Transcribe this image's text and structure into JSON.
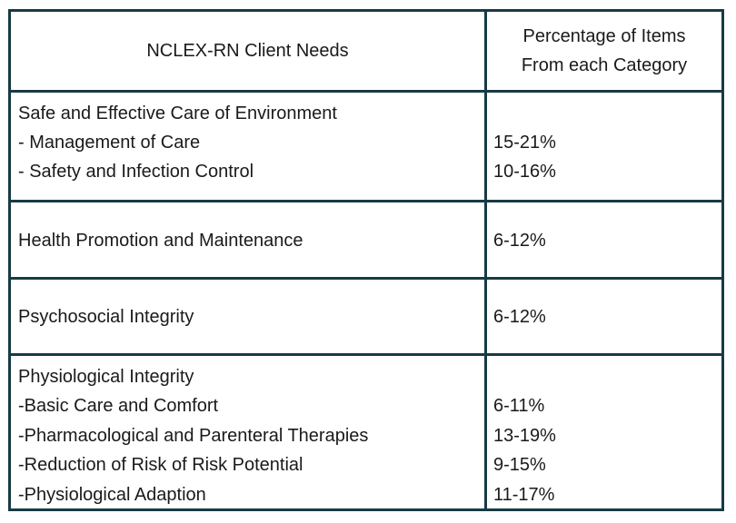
{
  "table": {
    "header": {
      "col1": "NCLEX-RN Client Needs",
      "col2_line1": "Percentage of Items",
      "col2_line2": "From each Category"
    },
    "rows": [
      {
        "category": "Safe and Effective Care of Environment",
        "items": [
          {
            "label": "- Management of Care",
            "percent": "15-21%"
          },
          {
            "label": "- Safety and Infection Control",
            "percent": "10-16%"
          }
        ]
      },
      {
        "category": "Health Promotion and Maintenance",
        "percent": "6-12%"
      },
      {
        "category": "Psychosocial Integrity",
        "percent": "6-12%"
      },
      {
        "category": "Physiological Integrity",
        "items": [
          {
            "label": "-Basic Care and Comfort",
            "percent": "6-11%"
          },
          {
            "label": "-Pharmacological and Parenteral Therapies",
            "percent": "13-19%"
          },
          {
            "label": "-Reduction of Risk of Risk Potential",
            "percent": "9-15%"
          },
          {
            "label": "-Physiological Adaption",
            "percent": "11-17%"
          }
        ]
      }
    ]
  }
}
